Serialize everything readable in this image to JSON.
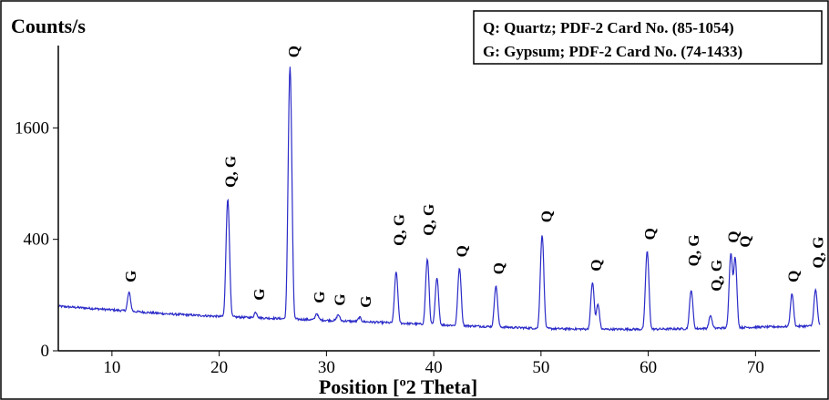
{
  "chart_data": {
    "type": "line",
    "ylabel": "Counts/s",
    "xlabel": "Position [º2 Theta]",
    "xlim": [
      5,
      76
    ],
    "x_ticks": [
      10,
      20,
      30,
      40,
      50,
      60,
      70
    ],
    "y_ticks": [
      {
        "value": 0,
        "label": "0"
      },
      {
        "value": 400,
        "label": "400"
      },
      {
        "value": 1600,
        "label": "1600"
      }
    ],
    "y_scale": "sqrt",
    "ylim": [
      0,
      3000
    ],
    "legend": {
      "placement": "top-right",
      "entries": [
        "Q: Quartz; PDF-2 Card No. (85-1054)",
        "G: Gypsum; PDF-2 Card No. (74-1433)"
      ]
    },
    "series": [
      {
        "color": "#2b2bc8",
        "baseline": [
          [
            5,
            64
          ],
          [
            10,
            54
          ],
          [
            15,
            44
          ],
          [
            20,
            38
          ],
          [
            25,
            34
          ],
          [
            30,
            30
          ],
          [
            35,
            26
          ],
          [
            40,
            22
          ],
          [
            45,
            19
          ],
          [
            50,
            16
          ],
          [
            55,
            15
          ],
          [
            60,
            15
          ],
          [
            65,
            16
          ],
          [
            70,
            18
          ],
          [
            76,
            20
          ]
        ],
        "peaks": [
          {
            "x": 11.6,
            "y": 110
          },
          {
            "x": 20.8,
            "y": 740
          },
          {
            "x": 23.4,
            "y": 48
          },
          {
            "x": 26.6,
            "y": 2600
          },
          {
            "x": 29.1,
            "y": 45
          },
          {
            "x": 31.1,
            "y": 42
          },
          {
            "x": 33.1,
            "y": 36
          },
          {
            "x": 36.5,
            "y": 200
          },
          {
            "x": 39.4,
            "y": 270
          },
          {
            "x": 40.3,
            "y": 170
          },
          {
            "x": 42.4,
            "y": 220
          },
          {
            "x": 45.8,
            "y": 135
          },
          {
            "x": 50.1,
            "y": 430
          },
          {
            "x": 54.8,
            "y": 150
          },
          {
            "x": 55.3,
            "y": 70
          },
          {
            "x": 59.9,
            "y": 320
          },
          {
            "x": 64.0,
            "y": 118
          },
          {
            "x": 65.8,
            "y": 40
          },
          {
            "x": 67.7,
            "y": 305
          },
          {
            "x": 68.1,
            "y": 280
          },
          {
            "x": 73.4,
            "y": 105
          },
          {
            "x": 75.6,
            "y": 120
          }
        ]
      }
    ],
    "annotations": [
      {
        "x": 11.7,
        "y": 135,
        "text": "G"
      },
      {
        "x": 21.0,
        "y": 820,
        "text": "Q, G"
      },
      {
        "x": 23.7,
        "y": 70,
        "text": "G"
      },
      {
        "x": 26.9,
        "y": 2700,
        "text": "Q"
      },
      {
        "x": 29.3,
        "y": 62,
        "text": "G"
      },
      {
        "x": 31.2,
        "y": 55,
        "text": "G"
      },
      {
        "x": 33.6,
        "y": 50,
        "text": "G"
      },
      {
        "x": 36.7,
        "y": 330,
        "text": "Q, G"
      },
      {
        "x": 39.5,
        "y": 400,
        "text": "Q, G"
      },
      {
        "x": 42.6,
        "y": 260,
        "text": "Q"
      },
      {
        "x": 46.0,
        "y": 170,
        "text": "Q"
      },
      {
        "x": 50.5,
        "y": 500,
        "text": "Q"
      },
      {
        "x": 55.1,
        "y": 185,
        "text": "Q"
      },
      {
        "x": 60.1,
        "y": 370,
        "text": "Q"
      },
      {
        "x": 64.2,
        "y": 210,
        "text": "Q, G"
      },
      {
        "x": 66.3,
        "y": 100,
        "text": "Q, G"
      },
      {
        "x": 67.9,
        "y": 350,
        "text": "Q"
      },
      {
        "x": 69.0,
        "y": 320,
        "text": "Q"
      },
      {
        "x": 73.5,
        "y": 135,
        "text": "Q"
      },
      {
        "x": 75.8,
        "y": 200,
        "text": "Q, G"
      }
    ]
  }
}
